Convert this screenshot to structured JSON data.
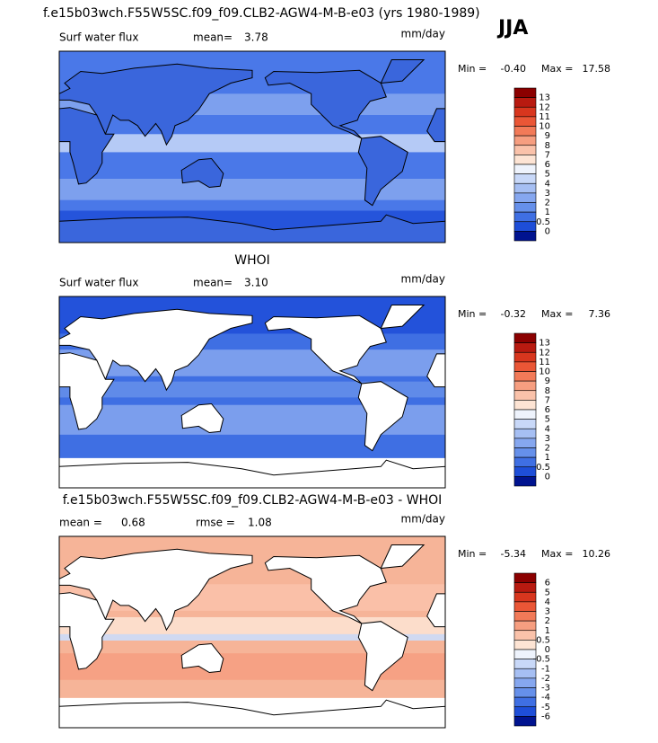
{
  "title": "f.e15b03wch.F55W5SC.f09_f09.CLB2-AGW4-M-B-e03 (yrs 1980-1989)",
  "season": "JJA",
  "palette": [
    "#8b0000",
    "#b81a10",
    "#d8361e",
    "#ea5636",
    "#f27a58",
    "#f69e80",
    "#fac2aa",
    "#fde4d4",
    "#eef3fc",
    "#c8d8f8",
    "#a6bff3",
    "#86a7ef",
    "#6690ea",
    "#3f6fe3",
    "#1e4ed8",
    "#00138f"
  ],
  "panels": [
    {
      "header": {
        "label": "Surf water flux",
        "mean_label": "mean=",
        "mean": "3.78",
        "unit": "mm/day"
      },
      "range": {
        "min_label": "Min =",
        "min": "-0.40",
        "max_label": "Max =",
        "max": "17.58"
      },
      "colorbar": [
        "13",
        "12",
        "11",
        "10",
        "9",
        "8",
        "7",
        "6",
        "5",
        "4",
        "3",
        "2",
        "1",
        "0.5",
        "0"
      ]
    },
    {
      "title": "WHOI",
      "header": {
        "label": "Surf water flux",
        "mean_label": "mean=",
        "mean": "3.10",
        "unit": "mm/day"
      },
      "range": {
        "min_label": "Min =",
        "min": "-0.32",
        "max_label": "Max =",
        "max": "7.36"
      },
      "colorbar": [
        "13",
        "12",
        "11",
        "10",
        "9",
        "8",
        "7",
        "6",
        "5",
        "4",
        "3",
        "2",
        "1",
        "0.5",
        "0"
      ]
    },
    {
      "title": "f.e15b03wch.F55W5SC.f09_f09.CLB2-AGW4-M-B-e03 - WHOI",
      "header": {
        "mean_label": "mean =",
        "mean": "0.68",
        "rmse_label": "rmse =",
        "rmse": "1.08",
        "unit": "mm/day"
      },
      "range": {
        "min_label": "Min =",
        "min": "-5.34",
        "max_label": "Max =",
        "max": "10.26"
      },
      "colorbar": [
        "6",
        "5",
        "4",
        "3",
        "2",
        "1",
        "0.5",
        "0",
        "-0.5",
        "-1",
        "-2",
        "-3",
        "-4",
        "-5",
        "-6"
      ]
    }
  ]
}
